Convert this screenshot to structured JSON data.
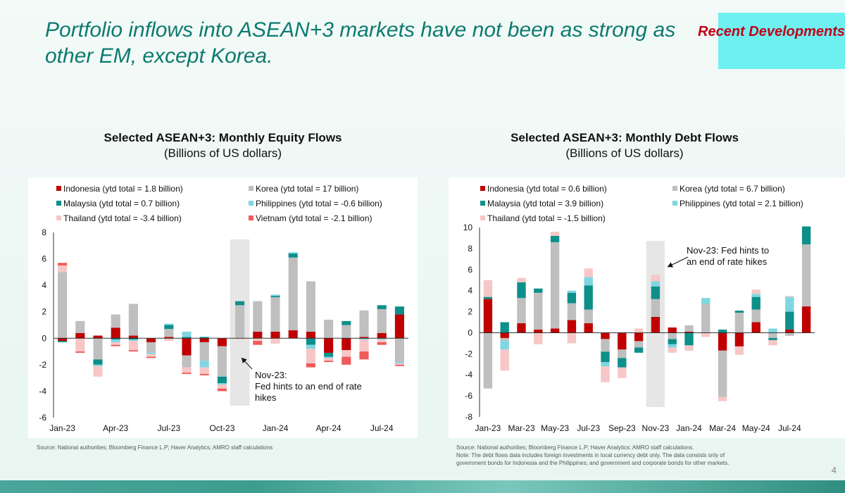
{
  "slide": {
    "title": "Portfolio inflows into ASEAN+3 markets have not been as strong as other EM, except Korea.",
    "tag": "Recent Developments",
    "page_number": "4"
  },
  "colors": {
    "Indonesia": "#c00000",
    "Korea": "#bfbfbf",
    "Malaysia": "#0d8f8a",
    "Philippines": "#7fd6e0",
    "Thailand": "#f7c6c6",
    "Vietnam": "#f05a5a"
  },
  "left": {
    "title": "Selected ASEAN+3: Monthly Equity Flows",
    "subtitle": "(Billions of US dollars)",
    "source": "Source: National authorities; Bloomberg Finance L.P; Haver Analytics; AMRO staff calculations",
    "annotation": [
      "Nov-23:",
      "Fed hints to an end of rate",
      "hikes"
    ]
  },
  "right": {
    "title": "Selected ASEAN+3: Monthly Debt Flows",
    "subtitle": "(Billions of US dollars)",
    "source_lines": [
      "Source: National authorities; Bloomberg Finance L.P; Haver Analytics; AMRO staff calculations.",
      "Note: The debt flows data includes foreign investments in local currency debt only. The data consists only of",
      "government bonds for Indonesia and the Philippines; and government and corporate bonds for other markets."
    ],
    "annotation": [
      "Nov-23: Fed hints to",
      "an end of rate hikes"
    ]
  },
  "chart_data": [
    {
      "type": "bar",
      "stacked": true,
      "title": "Selected ASEAN+3: Monthly Equity Flows",
      "subtitle": "(Billions of US dollars)",
      "ylim": [
        -6,
        8
      ],
      "yticks": [
        -6,
        -4,
        -2,
        0,
        2,
        4,
        6,
        8
      ],
      "categories": [
        "Jan-23",
        "Feb-23",
        "Mar-23",
        "Apr-23",
        "May-23",
        "Jun-23",
        "Jul-23",
        "Aug-23",
        "Sep-23",
        "Oct-23",
        "Nov-23",
        "Dec-23",
        "Jan-24",
        "Feb-24",
        "Mar-24",
        "Apr-24",
        "May-24",
        "Jun-24",
        "Jul-24",
        "Aug-24"
      ],
      "xtick_labels": [
        "Jan-23",
        "Apr-23",
        "Jul-23",
        "Oct-23",
        "Jan-24",
        "Apr-24",
        "Jul-24"
      ],
      "xtick_index": [
        0,
        3,
        6,
        9,
        12,
        15,
        18
      ],
      "highlight_category": "Nov-23",
      "legend_columns": 2,
      "legend_placement": "top",
      "series": [
        {
          "name": "Indonesia (ytd total = 1.8 billion)",
          "key": "Indonesia",
          "values": [
            -0.2,
            0.4,
            0.2,
            0.8,
            0.2,
            -0.3,
            0.1,
            -1.3,
            -0.3,
            -0.6,
            0,
            0.5,
            0.5,
            0.6,
            0.5,
            -1.1,
            -0.9,
            0.1,
            0.4,
            1.8
          ]
        },
        {
          "name": "Korea (ytd total = 17 billion)",
          "key": "Korea",
          "values": [
            5.0,
            0.9,
            -1.6,
            1.0,
            2.4,
            -0.8,
            0.6,
            -0.9,
            -1.4,
            -2.3,
            2.5,
            2.3,
            2.6,
            5.5,
            3.8,
            1.4,
            1.0,
            2.0,
            1.8,
            -1.8
          ]
        },
        {
          "name": "Malaysia (ytd total = 0.7 billion)",
          "key": "Malaysia",
          "values": [
            -0.1,
            0,
            -0.4,
            -0.1,
            -0.1,
            0,
            0.3,
            0.1,
            0.1,
            -0.5,
            0.3,
            0,
            0.1,
            0.3,
            -0.5,
            -0.3,
            0.3,
            0,
            0.3,
            0.6
          ]
        },
        {
          "name": "Philippines (ytd total = -0.6 billion)",
          "key": "Philippines",
          "values": [
            0,
            0,
            -0.1,
            -0.2,
            -0.1,
            -0.1,
            0.1,
            0.4,
            -0.5,
            -0.1,
            0,
            0,
            0.1,
            0.1,
            -0.3,
            -0.1,
            0,
            -0.1,
            -0.1,
            -0.1
          ]
        },
        {
          "name": "Thailand (ytd total = -3.4 billion)",
          "key": "Thailand",
          "values": [
            0.5,
            -1.0,
            -0.8,
            -0.2,
            -0.7,
            -0.2,
            -0.2,
            -0.4,
            -0.5,
            -0.3,
            -0.1,
            -0.2,
            -0.4,
            0,
            -1.1,
            -0.2,
            -0.5,
            -0.9,
            -0.2,
            -0.1
          ]
        },
        {
          "name": "Vietnam (ytd total = -2.1 billion)",
          "key": "Vietnam",
          "values": [
            0.2,
            -0.1,
            0,
            -0.1,
            -0.1,
            -0.1,
            0,
            -0.1,
            -0.1,
            -0.2,
            0,
            -0.3,
            0,
            0,
            -0.3,
            -0.1,
            -0.6,
            -0.6,
            -0.2,
            -0.1
          ]
        }
      ]
    },
    {
      "type": "bar",
      "stacked": true,
      "title": "Selected ASEAN+3: Monthly Debt Flows",
      "subtitle": "(Billions of US dollars)",
      "ylim": [
        -8,
        10
      ],
      "yticks": [
        -8,
        -6,
        -4,
        -2,
        0,
        2,
        4,
        6,
        8,
        10
      ],
      "categories": [
        "Jan-23",
        "Feb-23",
        "Mar-23",
        "Apr-23",
        "May-23",
        "Jun-23",
        "Jul-23",
        "Aug-23",
        "Sep-23",
        "Oct-23",
        "Nov-23",
        "Dec-23",
        "Jan-24",
        "Feb-24",
        "Mar-24",
        "Apr-24",
        "May-24",
        "Jun-24",
        "Jul-24",
        "Aug-24"
      ],
      "xtick_labels": [
        "Jan-23",
        "Mar-23",
        "May-23",
        "Jul-23",
        "Sep-23",
        "Nov-23",
        "Jan-24",
        "Mar-24",
        "May-24",
        "Jul-24"
      ],
      "xtick_index": [
        0,
        2,
        4,
        6,
        8,
        10,
        12,
        14,
        16,
        18
      ],
      "highlight_category": "Nov-23",
      "legend_columns": 2,
      "legend_placement": "top",
      "series": [
        {
          "name": "Indonesia (ytd total = 0.6 billion)",
          "key": "Indonesia",
          "values": [
            3.2,
            -0.5,
            0.9,
            0.3,
            0.4,
            1.2,
            0.9,
            -0.6,
            -1.6,
            -0.8,
            1.5,
            0.5,
            0.1,
            0,
            -1.7,
            -1.3,
            1.0,
            0,
            0.3,
            2.5
          ]
        },
        {
          "name": "Korea (ytd total = 6.7 billion)",
          "key": "Korea",
          "values": [
            -5.3,
            -0.3,
            2.4,
            3.5,
            8.2,
            1.6,
            1.3,
            -1.2,
            -0.8,
            -0.6,
            1.7,
            -0.6,
            0.6,
            2.7,
            -4.4,
            1.9,
            1.2,
            -0.5,
            -0.3,
            5.9
          ]
        },
        {
          "name": "Malaysia (ytd total = 3.9 billion)",
          "key": "Malaysia",
          "values": [
            0.2,
            1.0,
            1.5,
            0.4,
            0.6,
            1.0,
            2.3,
            -1.0,
            -0.9,
            -0.5,
            1.2,
            -0.5,
            -1.2,
            0,
            0.3,
            0.2,
            1.2,
            -0.2,
            1.7,
            1.7
          ]
        },
        {
          "name": "Philippines (ytd total = 2.1 billion)",
          "key": "Philippines",
          "values": [
            0,
            -0.8,
            0,
            0,
            0,
            0.2,
            0.8,
            -0.4,
            0,
            0,
            0.5,
            -0.3,
            0,
            0.6,
            0,
            0,
            0.3,
            0.4,
            1.4,
            0
          ]
        },
        {
          "name": "Thailand (ytd total = -1.5 billion)",
          "key": "Thailand",
          "values": [
            1.6,
            -2.0,
            0.4,
            -1.1,
            0.4,
            -1.0,
            0.8,
            -1.5,
            -1.0,
            0.4,
            0.6,
            -0.5,
            -0.5,
            -0.4,
            -0.4,
            -0.8,
            0.4,
            -0.5,
            0.1,
            0
          ]
        }
      ]
    }
  ]
}
